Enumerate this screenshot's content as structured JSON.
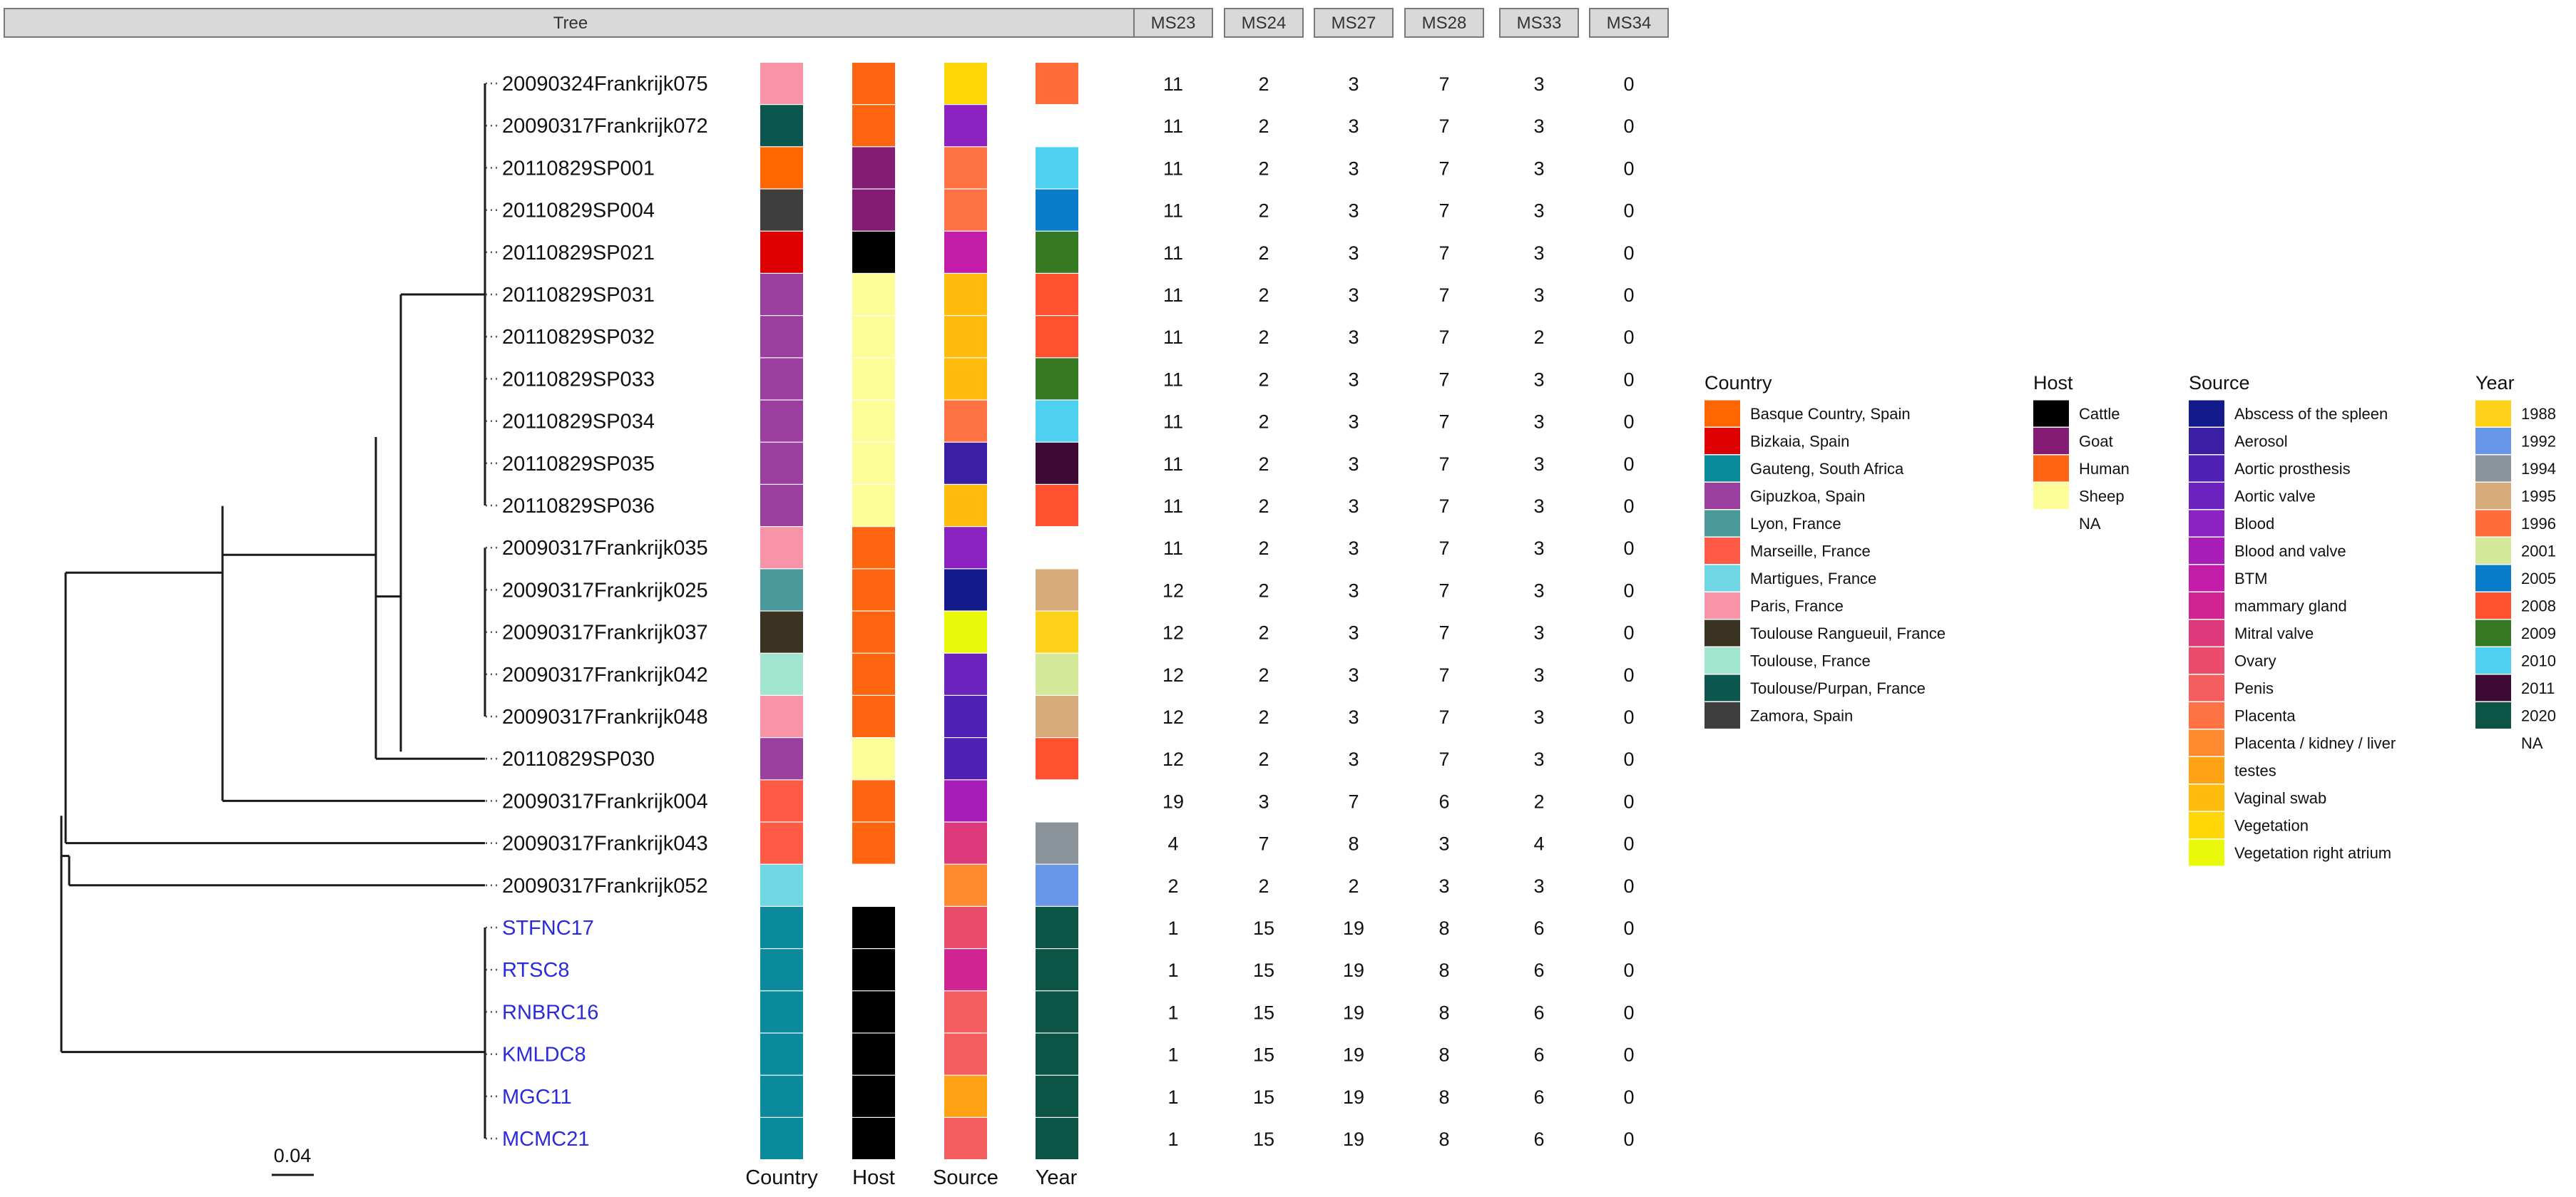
{
  "header": {
    "tree_label": "Tree",
    "ms_labels": [
      "MS23",
      "MS24",
      "MS27",
      "MS28",
      "MS33",
      "MS34"
    ]
  },
  "scale_bar": {
    "label": "0.04",
    "length_units": 0.04
  },
  "column_labels": {
    "country": "Country",
    "host": "Host",
    "source": "Source",
    "year": "Year"
  },
  "tips": [
    {
      "name": "20090324Frankrijk075",
      "ref": false,
      "country": "Paris, France",
      "host": "Human",
      "source": "Vegetation",
      "year": "1996",
      "ms": [
        11,
        2,
        3,
        7,
        3,
        0
      ]
    },
    {
      "name": "20090317Frankrijk072",
      "ref": false,
      "country": "Toulouse/Purpan, France",
      "host": "Human",
      "source": "Blood",
      "year": "NA",
      "ms": [
        11,
        2,
        3,
        7,
        3,
        0
      ]
    },
    {
      "name": "20110829SP001",
      "ref": false,
      "country": "Basque Country, Spain",
      "host": "Goat",
      "source": "Placenta",
      "year": "2010",
      "ms": [
        11,
        2,
        3,
        7,
        3,
        0
      ]
    },
    {
      "name": "20110829SP004",
      "ref": false,
      "country": "Zamora, Spain",
      "host": "Goat",
      "source": "Placenta",
      "year": "2005",
      "ms": [
        11,
        2,
        3,
        7,
        3,
        0
      ]
    },
    {
      "name": "20110829SP021",
      "ref": false,
      "country": "Bizkaia, Spain",
      "host": "Cattle",
      "source": "BTM",
      "year": "2009",
      "ms": [
        11,
        2,
        3,
        7,
        3,
        0
      ]
    },
    {
      "name": "20110829SP031",
      "ref": false,
      "country": "Gipuzkoa, Spain",
      "host": "Sheep",
      "source": "Vaginal swab",
      "year": "2008",
      "ms": [
        11,
        2,
        3,
        7,
        3,
        0
      ]
    },
    {
      "name": "20110829SP032",
      "ref": false,
      "country": "Gipuzkoa, Spain",
      "host": "Sheep",
      "source": "Vaginal swab",
      "year": "2008",
      "ms": [
        11,
        2,
        3,
        7,
        2,
        0
      ]
    },
    {
      "name": "20110829SP033",
      "ref": false,
      "country": "Gipuzkoa, Spain",
      "host": "Sheep",
      "source": "Vaginal swab",
      "year": "2009",
      "ms": [
        11,
        2,
        3,
        7,
        3,
        0
      ]
    },
    {
      "name": "20110829SP034",
      "ref": false,
      "country": "Gipuzkoa, Spain",
      "host": "Sheep",
      "source": "Placenta",
      "year": "2010",
      "ms": [
        11,
        2,
        3,
        7,
        3,
        0
      ]
    },
    {
      "name": "20110829SP035",
      "ref": false,
      "country": "Gipuzkoa, Spain",
      "host": "Sheep",
      "source": "Aerosol",
      "year": "2011",
      "ms": [
        11,
        2,
        3,
        7,
        3,
        0
      ]
    },
    {
      "name": "20110829SP036",
      "ref": false,
      "country": "Gipuzkoa, Spain",
      "host": "Sheep",
      "source": "Vaginal swab",
      "year": "2008",
      "ms": [
        11,
        2,
        3,
        7,
        3,
        0
      ]
    },
    {
      "name": "20090317Frankrijk035",
      "ref": false,
      "country": "Paris, France",
      "host": "Human",
      "source": "Blood",
      "year": "NA",
      "ms": [
        11,
        2,
        3,
        7,
        3,
        0
      ]
    },
    {
      "name": "20090317Frankrijk025",
      "ref": false,
      "country": "Lyon, France",
      "host": "Human",
      "source": "Abscess of the spleen",
      "year": "1995",
      "ms": [
        12,
        2,
        3,
        7,
        3,
        0
      ]
    },
    {
      "name": "20090317Frankrijk037",
      "ref": false,
      "country": "Toulouse Rangueuil, France",
      "host": "Human",
      "source": "Vegetation right atrium",
      "year": "1988",
      "ms": [
        12,
        2,
        3,
        7,
        3,
        0
      ]
    },
    {
      "name": "20090317Frankrijk042",
      "ref": false,
      "country": "Toulouse, France",
      "host": "Human",
      "source": "Aortic valve",
      "year": "2001",
      "ms": [
        12,
        2,
        3,
        7,
        3,
        0
      ]
    },
    {
      "name": "20090317Frankrijk048",
      "ref": false,
      "country": "Paris, France",
      "host": "Human",
      "source": "Aortic prosthesis",
      "year": "1995",
      "ms": [
        12,
        2,
        3,
        7,
        3,
        0
      ]
    },
    {
      "name": "20110829SP030",
      "ref": false,
      "country": "Gipuzkoa, Spain",
      "host": "Sheep",
      "source": "Aortic prosthesis",
      "year": "2008",
      "ms": [
        12,
        2,
        3,
        7,
        3,
        0
      ]
    },
    {
      "name": "20090317Frankrijk004",
      "ref": false,
      "country": "Marseille, France",
      "host": "Human",
      "source": "Blood and valve",
      "year": "NA",
      "ms": [
        19,
        3,
        7,
        6,
        2,
        0
      ]
    },
    {
      "name": "20090317Frankrijk043",
      "ref": false,
      "country": "Marseille, France",
      "host": "Human",
      "source": "Mitral valve",
      "year": "1994",
      "ms": [
        4,
        7,
        8,
        3,
        4,
        0
      ]
    },
    {
      "name": "20090317Frankrijk052",
      "ref": false,
      "country": "Martigues, France",
      "host": "NA",
      "source": "Placenta / kidney / liver",
      "year": "1992",
      "ms": [
        2,
        2,
        2,
        3,
        3,
        0
      ]
    },
    {
      "name": "STFNC17",
      "ref": true,
      "country": "Gauteng, South Africa",
      "host": "Cattle",
      "source": "Ovary",
      "year": "2020",
      "ms": [
        1,
        15,
        19,
        8,
        6,
        0
      ]
    },
    {
      "name": "RTSC8",
      "ref": true,
      "country": "Gauteng, South Africa",
      "host": "Cattle",
      "source": "mammary gland",
      "year": "2020",
      "ms": [
        1,
        15,
        19,
        8,
        6,
        0
      ]
    },
    {
      "name": "RNBRC16",
      "ref": true,
      "country": "Gauteng, South Africa",
      "host": "Cattle",
      "source": "Penis",
      "year": "2020",
      "ms": [
        1,
        15,
        19,
        8,
        6,
        0
      ]
    },
    {
      "name": "KMLDC8",
      "ref": true,
      "country": "Gauteng, South Africa",
      "host": "Cattle",
      "source": "Penis",
      "year": "2020",
      "ms": [
        1,
        15,
        19,
        8,
        6,
        0
      ]
    },
    {
      "name": "MGC11",
      "ref": true,
      "country": "Gauteng, South Africa",
      "host": "Cattle",
      "source": "testes",
      "year": "2020",
      "ms": [
        1,
        15,
        19,
        8,
        6,
        0
      ]
    },
    {
      "name": "MCMC21",
      "ref": true,
      "country": "Gauteng, South Africa",
      "host": "Cattle",
      "source": "Penis",
      "year": "2020",
      "ms": [
        1,
        15,
        19,
        8,
        6,
        0
      ]
    }
  ],
  "legend": {
    "country": {
      "title": "Country",
      "items": [
        {
          "label": "Basque Country, Spain",
          "color": "#ff6600"
        },
        {
          "label": "Bizkaia, Spain",
          "color": "#dd0000"
        },
        {
          "label": "Gauteng, South Africa",
          "color": "#0a8a9a"
        },
        {
          "label": "Gipuzkoa, Spain",
          "color": "#9b3f9e"
        },
        {
          "label": "Lyon, France",
          "color": "#4a9a9c"
        },
        {
          "label": "Marseille, France",
          "color": "#ff5a45"
        },
        {
          "label": "Martigues, France",
          "color": "#6fd6e4"
        },
        {
          "label": "Paris, France",
          "color": "#f993a8"
        },
        {
          "label": "Toulouse Rangueuil, France",
          "color": "#3b3322"
        },
        {
          "label": "Toulouse, France",
          "color": "#a3e6cf"
        },
        {
          "label": "Toulouse/Purpan, France",
          "color": "#0c5650"
        },
        {
          "label": "Zamora, Spain",
          "color": "#3e3e3e"
        }
      ]
    },
    "host": {
      "title": "Host",
      "items": [
        {
          "label": "Cattle",
          "color": "#000000"
        },
        {
          "label": "Goat",
          "color": "#841b74"
        },
        {
          "label": "Human",
          "color": "#ff6410"
        },
        {
          "label": "Sheep",
          "color": "#fcfc98"
        },
        {
          "label": "NA",
          "color": null
        }
      ]
    },
    "source": {
      "title": "Source",
      "items": [
        {
          "label": "Abscess of the spleen",
          "color": "#121a8c"
        },
        {
          "label": "Aerosol",
          "color": "#3a1fa5"
        },
        {
          "label": "Aortic prosthesis",
          "color": "#5020b4"
        },
        {
          "label": "Aortic valve",
          "color": "#6c22bc"
        },
        {
          "label": "Blood",
          "color": "#8c22c0"
        },
        {
          "label": "Blood and valve",
          "color": "#a81cb8"
        },
        {
          "label": "BTM",
          "color": "#c21ca8"
        },
        {
          "label": "mammary gland",
          "color": "#cf2492"
        },
        {
          "label": "Mitral valve",
          "color": "#dc3a7a"
        },
        {
          "label": "Ovary",
          "color": "#ec4c6c"
        },
        {
          "label": "Penis",
          "color": "#f55e5e"
        },
        {
          "label": "Placenta",
          "color": "#ff7244"
        },
        {
          "label": "Placenta / kidney / liver",
          "color": "#ff8a30"
        },
        {
          "label": "testes",
          "color": "#ffa214"
        },
        {
          "label": "Vaginal swab",
          "color": "#ffbc0c"
        },
        {
          "label": "Vegetation",
          "color": "#ffd608"
        },
        {
          "label": "Vegetation right atrium",
          "color": "#eaf80a"
        }
      ]
    },
    "year": {
      "title": "Year",
      "items": [
        {
          "label": "1988",
          "color": "#ffd21a"
        },
        {
          "label": "1992",
          "color": "#6896e8"
        },
        {
          "label": "1994",
          "color": "#8a929a"
        },
        {
          "label": "1995",
          "color": "#d6aa7a"
        },
        {
          "label": "1996",
          "color": "#ff6c3a"
        },
        {
          "label": "2001",
          "color": "#d4e89a"
        },
        {
          "label": "2005",
          "color": "#0a7ccc"
        },
        {
          "label": "2008",
          "color": "#ff5030"
        },
        {
          "label": "2009",
          "color": "#357a22"
        },
        {
          "label": "2010",
          "color": "#4ed0f0"
        },
        {
          "label": "2011",
          "color": "#3c0a34"
        },
        {
          "label": "2020",
          "color": "#0c5446"
        },
        {
          "label": "NA",
          "color": null
        }
      ]
    }
  },
  "colors": {
    "header_fill": "#d9d9d9",
    "header_stroke": "#7a7a7a",
    "branch": "#1a1a1a",
    "tip_leader": "#555555",
    "tip_text": "#111111",
    "ref_tip_text": "#2b2bdd"
  }
}
